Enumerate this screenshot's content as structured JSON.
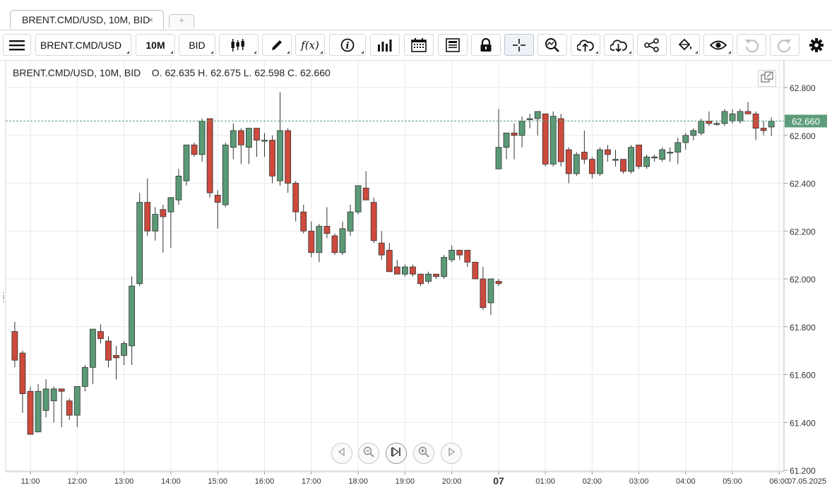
{
  "tab": {
    "title": "BRENT.CMD/USD, 10M, BID",
    "close_icon": "close-icon",
    "add_label": "+"
  },
  "toolbar": {
    "instrument": "BRENT.CMD/USD",
    "period": "10M",
    "side": "BID",
    "icons": [
      "menu-icon",
      "candlestick-icon",
      "pencil-icon",
      "function-icon",
      "info-icon",
      "bar-chart-icon",
      "calendar-icon",
      "news-icon",
      "lock-icon",
      "crosshair-icon",
      "zoom-icon",
      "upload-icon",
      "download-icon",
      "share-icon",
      "paint-bucket-icon",
      "eye-icon",
      "undo-icon",
      "redo-icon",
      "gear-icon"
    ]
  },
  "legend": {
    "text": "BRENT.CMD/USD, 10M, BID    O. 62.635 H. 62.675 L. 62.598 C. 62.660"
  },
  "colors": {
    "up": "#5a9a76",
    "down": "#cd4a3c",
    "grid": "#e9e9e9",
    "last_price_bg": "#5e9c7c"
  },
  "chart_data": {
    "type": "candlestick",
    "instrument": "BRENT.CMD/USD",
    "timeframe": "10M",
    "side": "BID",
    "last_price": "62.660",
    "ylim": [
      61.2,
      62.9
    ],
    "y_ticks": [
      "62.800",
      "62.600",
      "62.400",
      "62.200",
      "62.000",
      "61.800",
      "61.600",
      "61.400",
      "61.200"
    ],
    "x_ticks": [
      "11:00",
      "12:00",
      "13:00",
      "14:00",
      "15:00",
      "16:00",
      "17:00",
      "18:00",
      "19:00",
      "20:00",
      "07",
      "01:00",
      "02:00",
      "03:00",
      "04:00",
      "05:00",
      "06:00"
    ],
    "x_edge_label": "07.05.2025",
    "candles": [
      {
        "t": "10:40",
        "o": 61.78,
        "h": 61.82,
        "l": 61.63,
        "c": 61.66
      },
      {
        "t": "10:50",
        "o": 61.69,
        "h": 61.7,
        "l": 61.44,
        "c": 61.52
      },
      {
        "t": "11:00",
        "o": 61.53,
        "h": 61.55,
        "l": 61.35,
        "c": 61.35
      },
      {
        "t": "11:10",
        "o": 61.36,
        "h": 61.56,
        "l": 61.36,
        "c": 61.53
      },
      {
        "t": "11:20",
        "o": 61.45,
        "h": 61.58,
        "l": 61.42,
        "c": 61.54
      },
      {
        "t": "11:30",
        "o": 61.49,
        "h": 61.55,
        "l": 61.4,
        "c": 61.54
      },
      {
        "t": "11:40",
        "o": 61.54,
        "h": 61.54,
        "l": 61.38,
        "c": 61.53
      },
      {
        "t": "11:50",
        "o": 61.49,
        "h": 61.5,
        "l": 61.41,
        "c": 61.43
      },
      {
        "t": "12:00",
        "o": 61.43,
        "h": 61.55,
        "l": 61.38,
        "c": 61.55
      },
      {
        "t": "12:10",
        "o": 61.55,
        "h": 61.64,
        "l": 61.53,
        "c": 61.63
      },
      {
        "t": "12:20",
        "o": 61.63,
        "h": 61.79,
        "l": 61.56,
        "c": 61.79
      },
      {
        "t": "12:30",
        "o": 61.78,
        "h": 61.81,
        "l": 61.73,
        "c": 61.75
      },
      {
        "t": "12:40",
        "o": 61.74,
        "h": 61.76,
        "l": 61.63,
        "c": 61.66
      },
      {
        "t": "12:50",
        "o": 61.68,
        "h": 61.72,
        "l": 61.58,
        "c": 61.67
      },
      {
        "t": "13:00",
        "o": 61.68,
        "h": 61.74,
        "l": 61.64,
        "c": 61.73
      },
      {
        "t": "13:10",
        "o": 61.72,
        "h": 62.01,
        "l": 61.64,
        "c": 61.97
      },
      {
        "t": "13:20",
        "o": 61.98,
        "h": 62.36,
        "l": 61.97,
        "c": 62.32
      },
      {
        "t": "13:30",
        "o": 62.32,
        "h": 62.42,
        "l": 62.18,
        "c": 62.2
      },
      {
        "t": "13:40",
        "o": 62.2,
        "h": 62.3,
        "l": 62.16,
        "c": 62.27
      },
      {
        "t": "13:50",
        "o": 62.29,
        "h": 62.31,
        "l": 62.11,
        "c": 62.26
      },
      {
        "t": "14:00",
        "o": 62.28,
        "h": 62.34,
        "l": 62.13,
        "c": 62.34
      },
      {
        "t": "14:10",
        "o": 62.33,
        "h": 62.46,
        "l": 62.31,
        "c": 62.43
      },
      {
        "t": "14:20",
        "o": 62.41,
        "h": 62.56,
        "l": 62.39,
        "c": 62.56
      },
      {
        "t": "14:30",
        "o": 62.56,
        "h": 62.57,
        "l": 62.51,
        "c": 62.52
      },
      {
        "t": "14:40",
        "o": 62.52,
        "h": 62.67,
        "l": 62.49,
        "c": 62.66
      },
      {
        "t": "14:50",
        "o": 62.67,
        "h": 62.67,
        "l": 62.34,
        "c": 62.36
      },
      {
        "t": "15:00",
        "o": 62.35,
        "h": 62.37,
        "l": 62.21,
        "c": 62.32
      },
      {
        "t": "15:10",
        "o": 62.31,
        "h": 62.57,
        "l": 62.3,
        "c": 62.56
      },
      {
        "t": "15:20",
        "o": 62.55,
        "h": 62.65,
        "l": 62.5,
        "c": 62.62
      },
      {
        "t": "15:30",
        "o": 62.62,
        "h": 62.63,
        "l": 62.48,
        "c": 62.56
      },
      {
        "t": "15:40",
        "o": 62.55,
        "h": 62.63,
        "l": 62.48,
        "c": 62.63
      },
      {
        "t": "15:50",
        "o": 62.63,
        "h": 62.63,
        "l": 62.51,
        "c": 62.58
      },
      {
        "t": "16:00",
        "o": 62.58,
        "h": 62.61,
        "l": 62.51,
        "c": 62.58
      },
      {
        "t": "16:10",
        "o": 62.58,
        "h": 62.6,
        "l": 62.4,
        "c": 62.43
      },
      {
        "t": "16:20",
        "o": 62.41,
        "h": 62.78,
        "l": 62.39,
        "c": 62.62
      },
      {
        "t": "16:30",
        "o": 62.62,
        "h": 62.63,
        "l": 62.36,
        "c": 62.4
      },
      {
        "t": "16:40",
        "o": 62.4,
        "h": 62.41,
        "l": 62.24,
        "c": 62.28
      },
      {
        "t": "16:50",
        "o": 62.28,
        "h": 62.31,
        "l": 62.19,
        "c": 62.2
      },
      {
        "t": "17:00",
        "o": 62.2,
        "h": 62.24,
        "l": 62.09,
        "c": 62.11
      },
      {
        "t": "17:10",
        "o": 62.11,
        "h": 62.23,
        "l": 62.07,
        "c": 62.22
      },
      {
        "t": "17:20",
        "o": 62.22,
        "h": 62.3,
        "l": 62.17,
        "c": 62.19
      },
      {
        "t": "17:30",
        "o": 62.18,
        "h": 62.19,
        "l": 62.1,
        "c": 62.11
      },
      {
        "t": "17:40",
        "o": 62.11,
        "h": 62.24,
        "l": 62.1,
        "c": 62.21
      },
      {
        "t": "17:50",
        "o": 62.2,
        "h": 62.31,
        "l": 62.18,
        "c": 62.28
      },
      {
        "t": "18:00",
        "o": 62.28,
        "h": 62.39,
        "l": 62.27,
        "c": 62.39
      },
      {
        "t": "18:10",
        "o": 62.38,
        "h": 62.45,
        "l": 62.34,
        "c": 62.33
      },
      {
        "t": "18:20",
        "o": 62.32,
        "h": 62.34,
        "l": 62.15,
        "c": 62.16
      },
      {
        "t": "18:30",
        "o": 62.15,
        "h": 62.2,
        "l": 62.08,
        "c": 62.1
      },
      {
        "t": "18:40",
        "o": 62.12,
        "h": 62.15,
        "l": 62.03,
        "c": 62.03
      },
      {
        "t": "18:50",
        "o": 62.05,
        "h": 62.08,
        "l": 62.02,
        "c": 62.02
      },
      {
        "t": "19:00",
        "o": 62.02,
        "h": 62.06,
        "l": 62.01,
        "c": 62.05
      },
      {
        "t": "19:10",
        "o": 62.05,
        "h": 62.06,
        "l": 62.01,
        "c": 62.02
      },
      {
        "t": "19:20",
        "o": 62.02,
        "h": 62.02,
        "l": 61.97,
        "c": 61.98
      },
      {
        "t": "19:30",
        "o": 61.99,
        "h": 62.03,
        "l": 61.98,
        "c": 62.02
      },
      {
        "t": "19:40",
        "o": 62.02,
        "h": 62.02,
        "l": 62.0,
        "c": 62.01
      },
      {
        "t": "19:50",
        "o": 62.01,
        "h": 62.1,
        "l": 62.0,
        "c": 62.09
      },
      {
        "t": "20:00",
        "o": 62.08,
        "h": 62.14,
        "l": 62.07,
        "c": 62.12
      },
      {
        "t": "20:10",
        "o": 62.12,
        "h": 62.12,
        "l": 62.08,
        "c": 62.1
      },
      {
        "t": "20:20",
        "o": 62.12,
        "h": 62.12,
        "l": 62.05,
        "c": 62.07
      },
      {
        "t": "20:30",
        "o": 62.07,
        "h": 62.07,
        "l": 62.0,
        "c": 62.0
      },
      {
        "t": "20:40",
        "o": 62.0,
        "h": 62.05,
        "l": 61.87,
        "c": 61.88
      },
      {
        "t": "20:50",
        "o": 61.9,
        "h": 62.0,
        "l": 61.85,
        "c": 62.0
      },
      {
        "t": "21:00",
        "o": 61.99,
        "h": 62.0,
        "l": 61.97,
        "c": 61.98
      },
      {
        "t": "00:00",
        "o": 62.46,
        "h": 62.71,
        "l": 62.46,
        "c": 62.55
      },
      {
        "t": "00:10",
        "o": 62.55,
        "h": 62.61,
        "l": 62.5,
        "c": 62.61
      },
      {
        "t": "00:20",
        "o": 62.61,
        "h": 62.65,
        "l": 62.5,
        "c": 62.6
      },
      {
        "t": "00:30",
        "o": 62.6,
        "h": 62.68,
        "l": 62.55,
        "c": 62.66
      },
      {
        "t": "00:40",
        "o": 62.67,
        "h": 62.69,
        "l": 62.63,
        "c": 62.67
      },
      {
        "t": "00:50",
        "o": 62.67,
        "h": 62.7,
        "l": 62.6,
        "c": 62.7
      },
      {
        "t": "01:00",
        "o": 62.69,
        "h": 62.69,
        "l": 62.47,
        "c": 62.48
      },
      {
        "t": "01:10",
        "o": 62.48,
        "h": 62.7,
        "l": 62.47,
        "c": 62.68
      },
      {
        "t": "01:20",
        "o": 62.67,
        "h": 62.69,
        "l": 62.47,
        "c": 62.49
      },
      {
        "t": "01:30",
        "o": 62.54,
        "h": 62.55,
        "l": 62.4,
        "c": 62.44
      },
      {
        "t": "01:40",
        "o": 62.44,
        "h": 62.53,
        "l": 62.43,
        "c": 62.52
      },
      {
        "t": "01:50",
        "o": 62.53,
        "h": 62.62,
        "l": 62.48,
        "c": 62.5
      },
      {
        "t": "02:00",
        "o": 62.5,
        "h": 62.51,
        "l": 62.42,
        "c": 62.44
      },
      {
        "t": "02:10",
        "o": 62.44,
        "h": 62.55,
        "l": 62.43,
        "c": 62.54
      },
      {
        "t": "02:20",
        "o": 62.54,
        "h": 62.56,
        "l": 62.49,
        "c": 62.52
      },
      {
        "t": "02:30",
        "o": 62.5,
        "h": 62.54,
        "l": 62.47,
        "c": 62.5
      },
      {
        "t": "02:40",
        "o": 62.5,
        "h": 62.5,
        "l": 62.44,
        "c": 62.45
      },
      {
        "t": "02:50",
        "o": 62.45,
        "h": 62.56,
        "l": 62.44,
        "c": 62.55
      },
      {
        "t": "03:00",
        "o": 62.56,
        "h": 62.56,
        "l": 62.46,
        "c": 62.47
      },
      {
        "t": "03:10",
        "o": 62.47,
        "h": 62.52,
        "l": 62.46,
        "c": 62.51
      },
      {
        "t": "03:20",
        "o": 62.51,
        "h": 62.52,
        "l": 62.49,
        "c": 62.51
      },
      {
        "t": "03:30",
        "o": 62.5,
        "h": 62.55,
        "l": 62.49,
        "c": 62.54
      },
      {
        "t": "03:40",
        "o": 62.53,
        "h": 62.55,
        "l": 62.49,
        "c": 62.53
      },
      {
        "t": "03:50",
        "o": 62.53,
        "h": 62.59,
        "l": 62.48,
        "c": 62.57
      },
      {
        "t": "04:00",
        "o": 62.57,
        "h": 62.61,
        "l": 62.54,
        "c": 62.6
      },
      {
        "t": "04:10",
        "o": 62.6,
        "h": 62.63,
        "l": 62.58,
        "c": 62.62
      },
      {
        "t": "04:20",
        "o": 62.61,
        "h": 62.67,
        "l": 62.6,
        "c": 62.66
      },
      {
        "t": "04:30",
        "o": 62.66,
        "h": 62.7,
        "l": 62.64,
        "c": 62.65
      },
      {
        "t": "04:40",
        "o": 62.65,
        "h": 62.66,
        "l": 62.64,
        "c": 62.65
      },
      {
        "t": "04:50",
        "o": 62.65,
        "h": 62.71,
        "l": 62.64,
        "c": 62.7
      },
      {
        "t": "05:00",
        "o": 62.66,
        "h": 62.71,
        "l": 62.65,
        "c": 62.69
      },
      {
        "t": "05:10",
        "o": 62.66,
        "h": 62.71,
        "l": 62.65,
        "c": 62.7
      },
      {
        "t": "05:20",
        "o": 62.7,
        "h": 62.74,
        "l": 62.69,
        "c": 62.69
      },
      {
        "t": "05:30",
        "o": 62.69,
        "h": 62.7,
        "l": 62.58,
        "c": 62.63
      },
      {
        "t": "05:40",
        "o": 62.63,
        "h": 62.66,
        "l": 62.6,
        "c": 62.62
      },
      {
        "t": "05:50",
        "o": 62.635,
        "h": 62.675,
        "l": 62.598,
        "c": 62.66
      }
    ]
  }
}
